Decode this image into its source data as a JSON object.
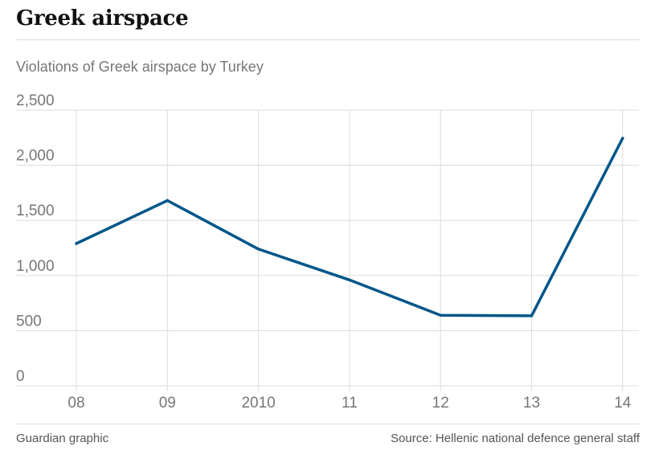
{
  "title": "Greek airspace",
  "subtitle": "Violations of Greek airspace by Turkey",
  "footer": {
    "credit": "Guardian graphic",
    "source": "Source: Hellenic national defence general staff"
  },
  "colors": {
    "line": "#005689",
    "grid": "#dcdcdc",
    "axis_text": "#767676"
  },
  "chart_data": {
    "type": "line",
    "categories": [
      "08",
      "09",
      "2010",
      "11",
      "12",
      "13",
      "14"
    ],
    "series": [
      {
        "values": [
          1290,
          1680,
          1240,
          960,
          640,
          635,
          2245
        ]
      }
    ],
    "yticks": [
      0,
      500,
      1000,
      1500,
      2000,
      2500
    ],
    "ytick_labels": [
      "0",
      "500",
      "1,000",
      "1,500",
      "2,000",
      "2,500"
    ],
    "ylim": [
      0,
      2500
    ],
    "xlabel": "",
    "ylabel": "",
    "grid": true
  }
}
